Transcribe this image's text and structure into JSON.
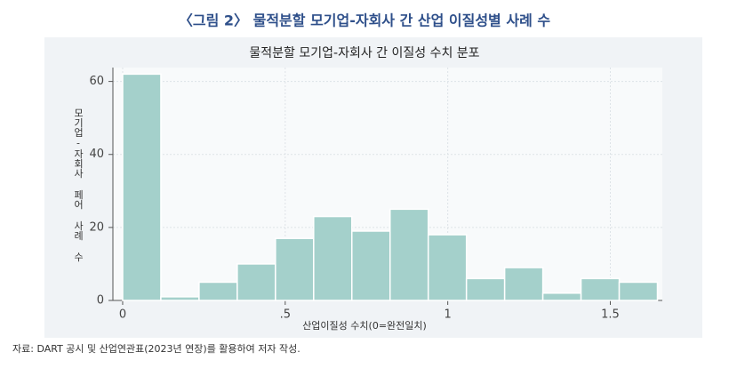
{
  "figure_title": "〈그림 2〉 물적분할 모기업-자회사 간 산업 이질성별 사례 수",
  "source": "자료: DART 공시 및 산업연관표(2023년 연장)를 활용하여 저자 작성.",
  "chart_data": {
    "type": "histogram",
    "title": "물적분할 모기업-자회사 간 이질성 수치 분포",
    "x_label": "산업이질성 수치(0=완전일치)",
    "y_label": "모기업-자회사 페어 사례 수",
    "bins": [
      0,
      0.1175,
      0.235,
      0.3525,
      0.47,
      0.5875,
      0.705,
      0.8225,
      0.94,
      1.0575,
      1.175,
      1.2925,
      1.41,
      1.5275,
      1.645
    ],
    "values": [
      62,
      1,
      5,
      10,
      17,
      23,
      19,
      25,
      18,
      6,
      9,
      2,
      6,
      5
    ],
    "color": "#a4d0cb",
    "xlim": [
      -0.03,
      1.66
    ],
    "ylim": [
      0,
      63.8
    ],
    "xticks": [
      0,
      {
        "value": 0.5,
        "label": ".5"
      },
      1,
      1.5
    ],
    "yticks": [
      0,
      20,
      40,
      60
    ],
    "grid": true
  }
}
